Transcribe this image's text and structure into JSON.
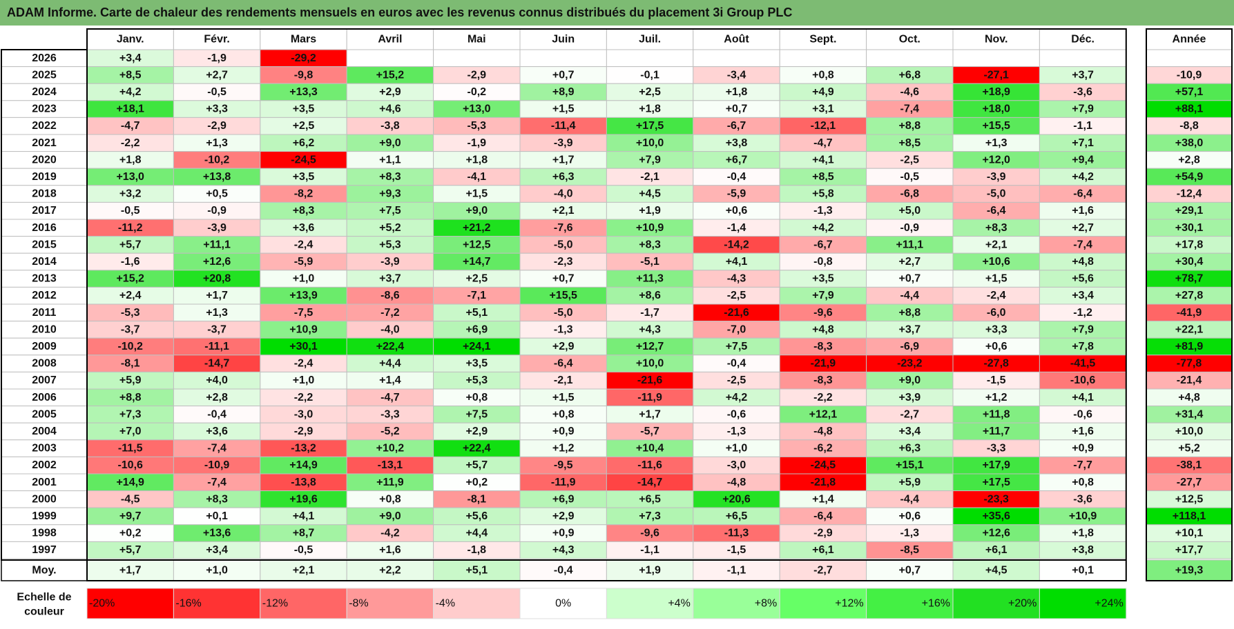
{
  "title": "ADAM Informe. Carte de chaleur des rendements mensuels en euros avec les revenus connus distribués du placement 3i Group PLC",
  "chart_data": {
    "type": "heatmap",
    "title": "ADAM Informe. Carte de chaleur des rendements mensuels en euros avec les revenus connus distribués du placement 3i Group PLC",
    "months": [
      "Janv.",
      "Févr.",
      "Mars",
      "Avril",
      "Mai",
      "Juin",
      "Juil.",
      "Août",
      "Sept.",
      "Oct.",
      "Nov.",
      "Déc."
    ],
    "year_col_label": "Année",
    "rows": [
      {
        "year": "2026",
        "values": [
          "+3,4",
          "-1,9",
          "-29,2",
          "",
          "",
          "",
          "",
          "",
          "",
          "",
          "",
          ""
        ],
        "annual": ""
      },
      {
        "year": "2025",
        "values": [
          "+8,5",
          "+2,7",
          "-9,8",
          "+15,2",
          "-2,9",
          "+0,7",
          "-0,1",
          "-3,4",
          "+0,8",
          "+6,8",
          "-27,1",
          "+3,7"
        ],
        "annual": "-10,9"
      },
      {
        "year": "2024",
        "values": [
          "+4,2",
          "-0,5",
          "+13,3",
          "+2,9",
          "-0,2",
          "+8,9",
          "+2,5",
          "+1,8",
          "+4,9",
          "-4,6",
          "+18,9",
          "-3,6"
        ],
        "annual": "+57,1"
      },
      {
        "year": "2023",
        "values": [
          "+18,1",
          "+3,3",
          "+3,5",
          "+4,6",
          "+13,0",
          "+1,5",
          "+1,8",
          "+0,7",
          "+3,1",
          "-7,4",
          "+18,0",
          "+7,9"
        ],
        "annual": "+88,1"
      },
      {
        "year": "2022",
        "values": [
          "-4,7",
          "-2,9",
          "+2,5",
          "-3,8",
          "-5,3",
          "-11,4",
          "+17,5",
          "-6,7",
          "-12,1",
          "+8,8",
          "+15,5",
          "-1,1"
        ],
        "annual": "-8,8"
      },
      {
        "year": "2021",
        "values": [
          "-2,2",
          "+1,3",
          "+6,2",
          "+9,0",
          "-1,9",
          "-3,9",
          "+10,0",
          "+3,8",
          "-4,7",
          "+8,5",
          "+1,3",
          "+7,1"
        ],
        "annual": "+38,0"
      },
      {
        "year": "2020",
        "values": [
          "+1,8",
          "-10,2",
          "-24,5",
          "+1,1",
          "+1,8",
          "+1,7",
          "+7,9",
          "+6,7",
          "+4,1",
          "-2,5",
          "+12,0",
          "+9,4"
        ],
        "annual": "+2,8"
      },
      {
        "year": "2019",
        "values": [
          "+13,0",
          "+13,8",
          "+3,5",
          "+8,3",
          "-4,1",
          "+6,3",
          "-2,1",
          "-0,4",
          "+8,5",
          "-0,5",
          "-3,9",
          "+4,2"
        ],
        "annual": "+54,9"
      },
      {
        "year": "2018",
        "values": [
          "+3,2",
          "+0,5",
          "-8,2",
          "+9,3",
          "+1,5",
          "-4,0",
          "+4,5",
          "-5,9",
          "+5,8",
          "-6,8",
          "-5,0",
          "-6,4"
        ],
        "annual": "-12,4"
      },
      {
        "year": "2017",
        "values": [
          "-0,5",
          "-0,9",
          "+8,3",
          "+7,5",
          "+9,0",
          "+2,1",
          "+1,9",
          "+0,6",
          "-1,3",
          "+5,0",
          "-6,4",
          "+1,6"
        ],
        "annual": "+29,1"
      },
      {
        "year": "2016",
        "values": [
          "-11,2",
          "-3,9",
          "+3,6",
          "+5,2",
          "+21,2",
          "-7,6",
          "+10,9",
          "-1,4",
          "+4,2",
          "-0,9",
          "+8,3",
          "+2,7"
        ],
        "annual": "+30,1"
      },
      {
        "year": "2015",
        "values": [
          "+5,7",
          "+11,1",
          "-2,4",
          "+5,3",
          "+12,5",
          "-5,0",
          "+8,3",
          "-14,2",
          "-6,7",
          "+11,1",
          "+2,1",
          "-7,4"
        ],
        "annual": "+17,8"
      },
      {
        "year": "2014",
        "values": [
          "-1,6",
          "+12,6",
          "-5,9",
          "-3,9",
          "+14,7",
          "-2,3",
          "-5,1",
          "+4,1",
          "-0,8",
          "+2,7",
          "+10,6",
          "+4,8"
        ],
        "annual": "+30,4"
      },
      {
        "year": "2013",
        "values": [
          "+15,2",
          "+20,8",
          "+1,0",
          "+3,7",
          "+2,5",
          "+0,7",
          "+11,3",
          "-4,3",
          "+3,5",
          "+0,7",
          "+1,5",
          "+5,6"
        ],
        "annual": "+78,7"
      },
      {
        "year": "2012",
        "values": [
          "+2,4",
          "+1,7",
          "+13,9",
          "-8,6",
          "-7,1",
          "+15,5",
          "+8,6",
          "-2,5",
          "+7,9",
          "-4,4",
          "-2,4",
          "+3,4"
        ],
        "annual": "+27,8"
      },
      {
        "year": "2011",
        "values": [
          "-5,3",
          "+1,3",
          "-7,5",
          "-7,2",
          "+5,1",
          "-5,0",
          "-1,7",
          "-21,6",
          "-9,6",
          "+8,8",
          "-6,0",
          "-1,2"
        ],
        "annual": "-41,9"
      },
      {
        "year": "2010",
        "values": [
          "-3,7",
          "-3,7",
          "+10,9",
          "-4,0",
          "+6,9",
          "-1,3",
          "+4,3",
          "-7,0",
          "+4,8",
          "+3,7",
          "+3,3",
          "+7,9"
        ],
        "annual": "+22,1"
      },
      {
        "year": "2009",
        "values": [
          "-10,2",
          "-11,1",
          "+30,1",
          "+22,4",
          "+24,1",
          "+2,9",
          "+12,7",
          "+7,5",
          "-8,3",
          "-6,9",
          "+0,6",
          "+7,8"
        ],
        "annual": "+81,9"
      },
      {
        "year": "2008",
        "values": [
          "-8,1",
          "-14,7",
          "-2,4",
          "+4,4",
          "+3,5",
          "-6,4",
          "+10,0",
          "-0,4",
          "-21,9",
          "-23,2",
          "-27,8",
          "-41,5"
        ],
        "annual": "-77,8"
      },
      {
        "year": "2007",
        "values": [
          "+5,9",
          "+4,0",
          "+1,0",
          "+1,4",
          "+5,3",
          "-2,1",
          "-21,6",
          "-2,5",
          "-8,3",
          "+9,0",
          "-1,5",
          "-10,6"
        ],
        "annual": "-21,4"
      },
      {
        "year": "2006",
        "values": [
          "+8,8",
          "+2,8",
          "-2,2",
          "-4,7",
          "+0,8",
          "+1,5",
          "-11,9",
          "+4,2",
          "-2,2",
          "+3,9",
          "+1,2",
          "+4,1"
        ],
        "annual": "+4,8"
      },
      {
        "year": "2005",
        "values": [
          "+7,3",
          "-0,4",
          "-3,0",
          "-3,3",
          "+7,5",
          "+0,8",
          "+1,7",
          "-0,6",
          "+12,1",
          "-2,7",
          "+11,8",
          "-0,6"
        ],
        "annual": "+31,4"
      },
      {
        "year": "2004",
        "values": [
          "+7,0",
          "+3,6",
          "-2,9",
          "-5,2",
          "+2,9",
          "+0,9",
          "-5,7",
          "-1,3",
          "-4,8",
          "+3,4",
          "+11,7",
          "+1,6"
        ],
        "annual": "+10,0"
      },
      {
        "year": "2003",
        "values": [
          "-11,5",
          "-7,4",
          "-13,2",
          "+10,2",
          "+22,4",
          "+1,2",
          "+10,4",
          "+1,0",
          "-6,2",
          "+6,3",
          "-3,3",
          "+0,9"
        ],
        "annual": "+5,2"
      },
      {
        "year": "2002",
        "values": [
          "-10,6",
          "-10,9",
          "+14,9",
          "-13,1",
          "+5,7",
          "-9,5",
          "-11,6",
          "-3,0",
          "-24,5",
          "+15,1",
          "+17,9",
          "-7,7"
        ],
        "annual": "-38,1"
      },
      {
        "year": "2001",
        "values": [
          "+14,9",
          "-7,4",
          "-13,8",
          "+11,9",
          "+0,2",
          "-11,9",
          "-14,7",
          "-4,8",
          "-21,8",
          "+5,9",
          "+17,5",
          "+0,8"
        ],
        "annual": "-27,7"
      },
      {
        "year": "2000",
        "values": [
          "-4,5",
          "+8,3",
          "+19,6",
          "+0,8",
          "-8,1",
          "+6,9",
          "+6,5",
          "+20,6",
          "+1,4",
          "-4,4",
          "-23,3",
          "-3,6"
        ],
        "annual": "+12,5"
      },
      {
        "year": "1999",
        "values": [
          "+9,7",
          "+0,1",
          "+4,1",
          "+9,0",
          "+5,6",
          "+2,9",
          "+7,3",
          "+6,5",
          "-6,4",
          "+0,6",
          "+35,6",
          "+10,9"
        ],
        "annual": "+118,1"
      },
      {
        "year": "1998",
        "values": [
          "+0,2",
          "+13,6",
          "+8,7",
          "-4,2",
          "+4,4",
          "+0,9",
          "-9,6",
          "-11,3",
          "-2,9",
          "-1,3",
          "+12,6",
          "+1,8"
        ],
        "annual": "+10,1"
      },
      {
        "year": "1997",
        "values": [
          "+5,7",
          "+3,4",
          "-0,5",
          "+1,6",
          "-1,8",
          "+4,3",
          "-1,1",
          "-1,5",
          "+6,1",
          "-8,5",
          "+6,1",
          "+3,8"
        ],
        "annual": "+17,7"
      }
    ],
    "average": {
      "label": "Moy.",
      "values": [
        "+1,7",
        "+1,0",
        "+2,1",
        "+2,2",
        "+5,1",
        "-0,4",
        "+1,9",
        "-1,1",
        "-2,7",
        "+0,7",
        "+4,5",
        "+0,1"
      ],
      "annual": "+19,3"
    },
    "scale": {
      "label_line1": "Echelle de",
      "label_line2": "couleur",
      "items": [
        {
          "label": "-20%",
          "value": -20,
          "color": "#ff0000"
        },
        {
          "label": "-16%",
          "value": -16,
          "color": "#ff3333"
        },
        {
          "label": "-12%",
          "value": -12,
          "color": "#ff6666"
        },
        {
          "label": "-8%",
          "value": -8,
          "color": "#ff9999"
        },
        {
          "label": "-4%",
          "value": -4,
          "color": "#ffcccc"
        },
        {
          "label": "0%",
          "value": 0,
          "color": "#ffffff"
        },
        {
          "label": "+4%",
          "value": 4,
          "color": "#ccffcc"
        },
        {
          "label": "+8%",
          "value": 8,
          "color": "#99ff99"
        },
        {
          "label": "+12%",
          "value": 12,
          "color": "#66ff66"
        },
        {
          "label": "+16%",
          "value": 16,
          "color": "#44f044"
        },
        {
          "label": "+20%",
          "value": 20,
          "color": "#22e022"
        },
        {
          "label": "+24%",
          "value": 24,
          "color": "#00dd00"
        }
      ]
    }
  },
  "colors": {
    "title_bg": "#7dbb73",
    "border": "#000000",
    "grid": "#bfbfbf",
    "neg_max": "#ff0000",
    "pos_max": "#00dd00"
  }
}
